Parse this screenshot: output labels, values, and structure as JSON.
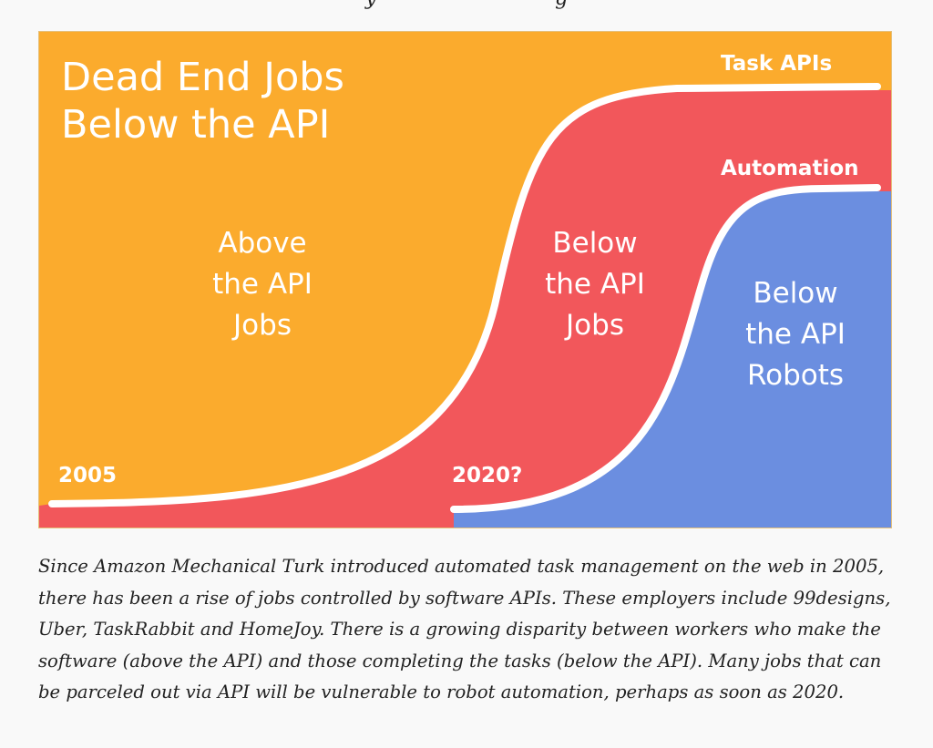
{
  "top_caption": "y                            g",
  "diagram": {
    "title_line1": "Dead End Jobs",
    "title_line2": "Below the API",
    "regions": {
      "above_api_jobs": [
        "Above",
        "the API",
        "Jobs"
      ],
      "below_api_jobs": [
        "Below",
        "the API",
        "Jobs"
      ],
      "below_api_robots": [
        "Below",
        "the API",
        "Robots"
      ]
    },
    "curve_labels": {
      "task_apis": "Task APIs",
      "automation": "Automation"
    },
    "year_labels": {
      "start": "2005",
      "future": "2020?"
    },
    "colors": {
      "above_api": "#fbab2d",
      "below_api_jobs": "#f2575b",
      "below_api_robots": "#6b8ee0",
      "curve": "#ffffff"
    }
  },
  "caption": "Since Amazon Mechanical Turk introduced automated task management on the web in 2005, there has been a rise of jobs controlled by software APIs. These employers include 99designs, Uber, TaskRabbit and HomeJoy. There is a growing disparity between workers who make the software (above the API) and those completing the tasks (below the API). Many jobs that can be parceled out via API will be vulnerable to robot automation, perhaps as soon as 2020."
}
